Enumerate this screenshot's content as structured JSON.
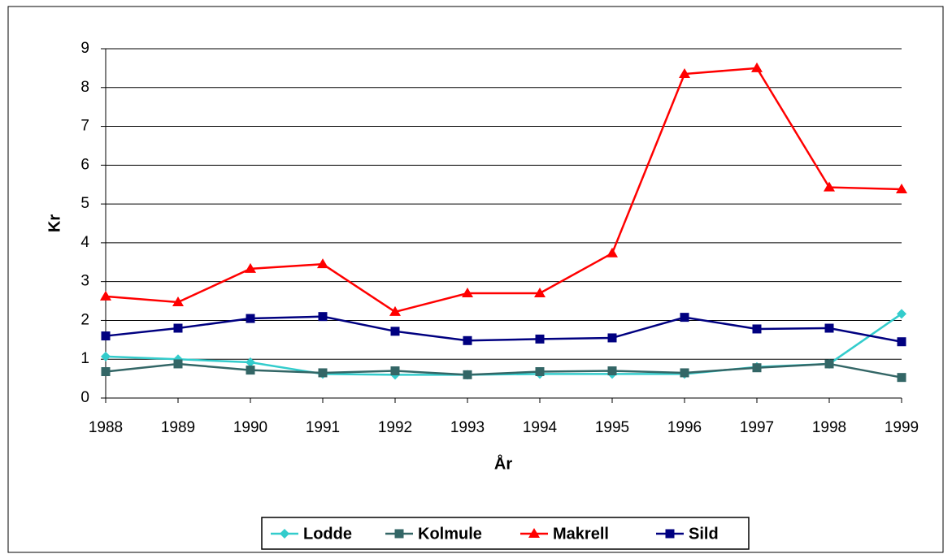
{
  "chart_data": {
    "type": "line",
    "x_label": "År",
    "y_label": "Kr",
    "categories": [
      "1988",
      "1989",
      "1990",
      "1991",
      "1992",
      "1993",
      "1994",
      "1995",
      "1996",
      "1997",
      "1998",
      "1999"
    ],
    "series": [
      {
        "name": "Lodde",
        "color": "#33cccc",
        "marker": "diamond",
        "values": [
          1.07,
          1.0,
          0.92,
          0.62,
          0.6,
          0.6,
          0.62,
          0.62,
          0.62,
          0.8,
          0.88,
          2.17
        ]
      },
      {
        "name": "Kolmule",
        "color": "#336666",
        "marker": "square",
        "values": [
          0.68,
          0.88,
          0.72,
          0.65,
          0.7,
          0.6,
          0.68,
          0.7,
          0.65,
          0.78,
          0.88,
          0.53
        ]
      },
      {
        "name": "Makrell",
        "color": "#ff0000",
        "marker": "triangle",
        "values": [
          2.62,
          2.47,
          3.33,
          3.45,
          2.22,
          2.7,
          2.7,
          3.73,
          8.35,
          8.5,
          5.43,
          5.38
        ]
      },
      {
        "name": "Sild",
        "color": "#000080",
        "marker": "square",
        "values": [
          1.6,
          1.8,
          2.05,
          2.1,
          1.72,
          1.48,
          1.52,
          1.55,
          2.08,
          1.78,
          1.8,
          1.45
        ]
      }
    ],
    "ylim": [
      0,
      9
    ],
    "yticks": [
      0,
      1,
      2,
      3,
      4,
      5,
      6,
      7,
      8,
      9
    ],
    "grid": true,
    "legend": "bottom"
  }
}
